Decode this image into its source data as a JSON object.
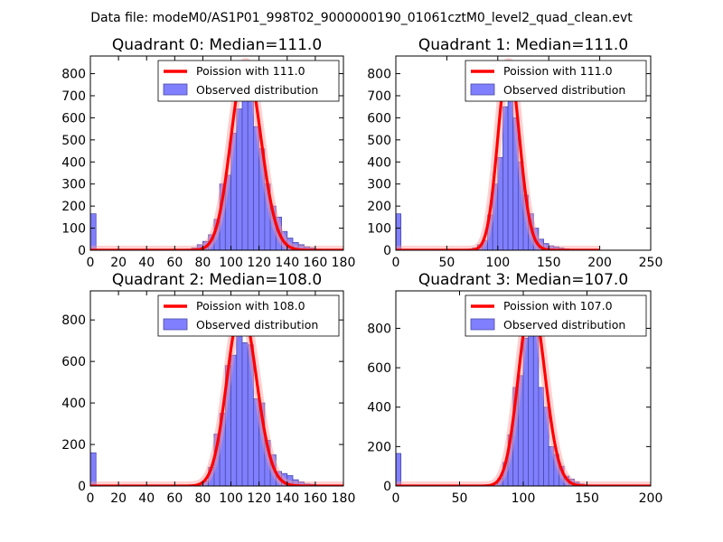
{
  "figure_title": "Data file: modeM0/AS1P01_998T02_9000000190_01061cztM0_level2_quad_clean.evt",
  "colors": {
    "bar_fill": "#8080ff",
    "bar_edge": "#4a4aa8",
    "poisson_line": "#ff0000",
    "poisson_fill": "#ff9a9a"
  },
  "chart_data": [
    {
      "type": "bar",
      "title": "Quadrant 0: Median=111.0",
      "xlim": [
        0,
        180
      ],
      "ylim": [
        0,
        880
      ],
      "xticks": [
        0,
        20,
        40,
        60,
        80,
        100,
        120,
        140,
        160,
        180
      ],
      "yticks": [
        0,
        100,
        200,
        300,
        400,
        500,
        600,
        700,
        800
      ],
      "bin_width": 4,
      "bins": [
        0,
        4,
        8,
        12,
        16,
        20,
        24,
        28,
        32,
        36,
        40,
        44,
        48,
        52,
        56,
        60,
        64,
        68,
        72,
        76,
        80,
        84,
        88,
        92,
        96,
        100,
        104,
        108,
        112,
        116,
        120,
        124,
        128,
        132,
        136,
        140,
        144,
        148,
        152,
        156,
        160,
        164,
        168,
        172,
        176
      ],
      "values": [
        165,
        0,
        0,
        0,
        0,
        0,
        0,
        0,
        0,
        0,
        0,
        0,
        0,
        0,
        0,
        0,
        3,
        5,
        10,
        25,
        40,
        70,
        140,
        300,
        340,
        530,
        640,
        800,
        720,
        560,
        460,
        300,
        200,
        150,
        85,
        55,
        35,
        25,
        15,
        10,
        5,
        3,
        2,
        1,
        0
      ],
      "poisson": {
        "label": "Poission with 111.0",
        "mean": 111.0,
        "peak": 850
      },
      "legend": [
        "Poission with 111.0",
        "Observed distribution"
      ]
    },
    {
      "type": "bar",
      "title": "Quadrant 1: Median=111.0",
      "xlim": [
        0,
        250
      ],
      "ylim": [
        0,
        880
      ],
      "xticks": [
        0,
        50,
        100,
        150,
        200,
        250
      ],
      "yticks": [
        0,
        100,
        200,
        300,
        400,
        500,
        600,
        700,
        800
      ],
      "bin_width": 5,
      "bins": [
        0,
        5,
        10,
        15,
        20,
        25,
        30,
        35,
        40,
        45,
        50,
        55,
        60,
        65,
        70,
        75,
        80,
        85,
        90,
        95,
        100,
        105,
        110,
        115,
        120,
        125,
        130,
        135,
        140,
        145,
        150,
        155,
        160,
        165,
        170,
        175,
        180,
        185,
        190,
        195
      ],
      "values": [
        165,
        0,
        0,
        0,
        0,
        0,
        0,
        0,
        0,
        0,
        0,
        0,
        0,
        3,
        5,
        10,
        25,
        45,
        160,
        300,
        420,
        650,
        830,
        600,
        400,
        250,
        165,
        100,
        50,
        30,
        20,
        15,
        10,
        6,
        3,
        2,
        1,
        1,
        0,
        0
      ],
      "poisson": {
        "label": "Poission with 111.0",
        "mean": 111.0,
        "peak": 850
      },
      "legend": [
        "Poission with 111.0",
        "Observed distribution"
      ]
    },
    {
      "type": "bar",
      "title": "Quadrant 2: Median=108.0",
      "xlim": [
        0,
        180
      ],
      "ylim": [
        0,
        940
      ],
      "xticks": [
        0,
        20,
        40,
        60,
        80,
        100,
        120,
        140,
        160,
        180
      ],
      "yticks": [
        0,
        200,
        400,
        600,
        800
      ],
      "bin_width": 4,
      "bins": [
        0,
        4,
        8,
        12,
        16,
        20,
        24,
        28,
        32,
        36,
        40,
        44,
        48,
        52,
        56,
        60,
        64,
        68,
        72,
        76,
        80,
        84,
        88,
        92,
        96,
        100,
        104,
        108,
        112,
        116,
        120,
        124,
        128,
        132,
        136,
        140,
        144,
        148,
        152,
        156,
        160,
        164,
        168,
        172,
        176
      ],
      "values": [
        160,
        0,
        0,
        0,
        0,
        0,
        0,
        0,
        0,
        0,
        0,
        0,
        0,
        0,
        0,
        0,
        0,
        2,
        4,
        10,
        25,
        90,
        250,
        350,
        580,
        630,
        800,
        690,
        680,
        420,
        400,
        220,
        150,
        70,
        60,
        50,
        30,
        20,
        10,
        8,
        5,
        3,
        2,
        1,
        0
      ],
      "poisson": {
        "label": "Poission with 108.0",
        "mean": 108.0,
        "peak": 860
      },
      "legend": [
        "Poission with 108.0",
        "Observed distribution"
      ]
    },
    {
      "type": "bar",
      "title": "Quadrant 3: Median=107.0",
      "xlim": [
        0,
        200
      ],
      "ylim": [
        0,
        990
      ],
      "xticks": [
        0,
        50,
        100,
        150,
        200
      ],
      "yticks": [
        0,
        200,
        400,
        600,
        800
      ],
      "bin_width": 4,
      "bins": [
        0,
        4,
        8,
        12,
        16,
        20,
        24,
        28,
        32,
        36,
        40,
        44,
        48,
        52,
        56,
        60,
        64,
        68,
        72,
        76,
        80,
        84,
        88,
        92,
        96,
        100,
        104,
        108,
        112,
        116,
        120,
        124,
        128,
        132,
        136,
        140,
        144,
        148,
        152,
        156,
        160,
        164,
        168,
        172,
        176,
        180
      ],
      "values": [
        165,
        0,
        0,
        0,
        0,
        0,
        0,
        0,
        0,
        0,
        0,
        0,
        0,
        0,
        0,
        0,
        0,
        2,
        5,
        15,
        40,
        120,
        260,
        500,
        560,
        750,
        850,
        800,
        500,
        400,
        200,
        160,
        100,
        50,
        35,
        20,
        10,
        5,
        3,
        2,
        1,
        0,
        0,
        0,
        0,
        0
      ],
      "poisson": {
        "label": "Poission with 107.0",
        "mean": 107.0,
        "peak": 940
      },
      "legend": [
        "Poission with 107.0",
        "Observed distribution"
      ]
    }
  ]
}
